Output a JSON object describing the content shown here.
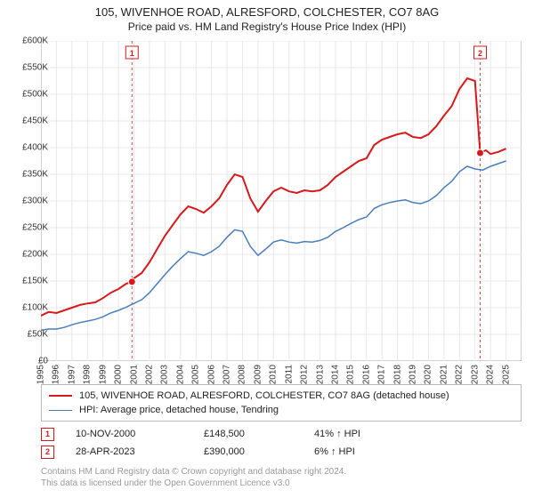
{
  "title": "105, WIVENHOE ROAD, ALRESFORD, COLCHESTER, CO7 8AG",
  "subtitle": "Price paid vs. HM Land Registry's House Price Index (HPI)",
  "chart": {
    "type": "line",
    "background_color": "#ffffff",
    "grid_color": "#e8e8e8",
    "axis_color": "#666666",
    "xlim": [
      1995,
      2026
    ],
    "ylim": [
      0,
      600000
    ],
    "ytick_step": 50000,
    "yticks": [
      "£0",
      "£50K",
      "£100K",
      "£150K",
      "£200K",
      "£250K",
      "£300K",
      "£350K",
      "£400K",
      "£450K",
      "£500K",
      "£550K",
      "£600K"
    ],
    "xticks": [
      "1995",
      "1996",
      "1997",
      "1998",
      "1999",
      "2000",
      "2001",
      "2002",
      "2003",
      "2004",
      "2005",
      "2006",
      "2007",
      "2008",
      "2009",
      "2010",
      "2011",
      "2012",
      "2013",
      "2014",
      "2015",
      "2016",
      "2017",
      "2018",
      "2019",
      "2020",
      "2021",
      "2022",
      "2023",
      "2024",
      "2025"
    ],
    "series": [
      {
        "name": "105, WIVENHOE ROAD, ALRESFORD, COLCHESTER, CO7 8AG (detached house)",
        "color": "#d7191c",
        "line_width": 2,
        "points": [
          [
            1995,
            85000
          ],
          [
            1995.5,
            92000
          ],
          [
            1996,
            90000
          ],
          [
            1996.5,
            95000
          ],
          [
            1997,
            100000
          ],
          [
            1997.5,
            105000
          ],
          [
            1998,
            108000
          ],
          [
            1998.5,
            110000
          ],
          [
            1999,
            118000
          ],
          [
            1999.5,
            128000
          ],
          [
            2000,
            135000
          ],
          [
            2000.5,
            145000
          ],
          [
            2000.87,
            148500
          ],
          [
            2001,
            155000
          ],
          [
            2001.5,
            165000
          ],
          [
            2002,
            185000
          ],
          [
            2002.5,
            210000
          ],
          [
            2003,
            235000
          ],
          [
            2003.5,
            255000
          ],
          [
            2004,
            275000
          ],
          [
            2004.5,
            290000
          ],
          [
            2005,
            285000
          ],
          [
            2005.5,
            278000
          ],
          [
            2006,
            290000
          ],
          [
            2006.5,
            305000
          ],
          [
            2007,
            330000
          ],
          [
            2007.5,
            350000
          ],
          [
            2008,
            345000
          ],
          [
            2008.5,
            305000
          ],
          [
            2009,
            280000
          ],
          [
            2009.5,
            300000
          ],
          [
            2010,
            318000
          ],
          [
            2010.5,
            325000
          ],
          [
            2011,
            318000
          ],
          [
            2011.5,
            315000
          ],
          [
            2012,
            320000
          ],
          [
            2012.5,
            318000
          ],
          [
            2013,
            320000
          ],
          [
            2013.5,
            330000
          ],
          [
            2014,
            345000
          ],
          [
            2014.5,
            355000
          ],
          [
            2015,
            365000
          ],
          [
            2015.5,
            375000
          ],
          [
            2016,
            380000
          ],
          [
            2016.5,
            405000
          ],
          [
            2017,
            415000
          ],
          [
            2017.5,
            420000
          ],
          [
            2018,
            425000
          ],
          [
            2018.5,
            428000
          ],
          [
            2019,
            420000
          ],
          [
            2019.5,
            418000
          ],
          [
            2020,
            425000
          ],
          [
            2020.5,
            440000
          ],
          [
            2021,
            460000
          ],
          [
            2021.5,
            478000
          ],
          [
            2022,
            510000
          ],
          [
            2022.5,
            530000
          ],
          [
            2023,
            525000
          ],
          [
            2023.33,
            390000
          ],
          [
            2023.7,
            395000
          ],
          [
            2024,
            388000
          ],
          [
            2024.5,
            392000
          ],
          [
            2025,
            398000
          ]
        ]
      },
      {
        "name": "HPI: Average price, detached house, Tendring",
        "color": "#4a7ebb",
        "line_width": 1.5,
        "points": [
          [
            1995,
            58000
          ],
          [
            1995.5,
            60000
          ],
          [
            1996,
            60000
          ],
          [
            1996.5,
            63000
          ],
          [
            1997,
            68000
          ],
          [
            1997.5,
            72000
          ],
          [
            1998,
            75000
          ],
          [
            1998.5,
            78000
          ],
          [
            1999,
            83000
          ],
          [
            1999.5,
            90000
          ],
          [
            2000,
            95000
          ],
          [
            2000.5,
            101000
          ],
          [
            2001,
            108000
          ],
          [
            2001.5,
            115000
          ],
          [
            2002,
            128000
          ],
          [
            2002.5,
            145000
          ],
          [
            2003,
            162000
          ],
          [
            2003.5,
            178000
          ],
          [
            2004,
            192000
          ],
          [
            2004.5,
            205000
          ],
          [
            2005,
            202000
          ],
          [
            2005.5,
            198000
          ],
          [
            2006,
            205000
          ],
          [
            2006.5,
            215000
          ],
          [
            2007,
            232000
          ],
          [
            2007.5,
            246000
          ],
          [
            2008,
            243000
          ],
          [
            2008.5,
            215000
          ],
          [
            2009,
            198000
          ],
          [
            2009.5,
            210000
          ],
          [
            2010,
            223000
          ],
          [
            2010.5,
            227000
          ],
          [
            2011,
            223000
          ],
          [
            2011.5,
            221000
          ],
          [
            2012,
            224000
          ],
          [
            2012.5,
            223000
          ],
          [
            2013,
            226000
          ],
          [
            2013.5,
            232000
          ],
          [
            2014,
            243000
          ],
          [
            2014.5,
            250000
          ],
          [
            2015,
            258000
          ],
          [
            2015.5,
            265000
          ],
          [
            2016,
            270000
          ],
          [
            2016.5,
            286000
          ],
          [
            2017,
            293000
          ],
          [
            2017.5,
            297000
          ],
          [
            2018,
            300000
          ],
          [
            2018.5,
            302000
          ],
          [
            2019,
            297000
          ],
          [
            2019.5,
            295000
          ],
          [
            2020,
            300000
          ],
          [
            2020.5,
            310000
          ],
          [
            2021,
            325000
          ],
          [
            2021.5,
            337000
          ],
          [
            2022,
            355000
          ],
          [
            2022.5,
            365000
          ],
          [
            2023,
            360000
          ],
          [
            2023.5,
            358000
          ],
          [
            2024,
            365000
          ],
          [
            2024.5,
            370000
          ],
          [
            2025,
            375000
          ]
        ]
      }
    ],
    "markers": [
      {
        "n": "1",
        "x": 2000.87,
        "y": 148500,
        "color": "#d7191c",
        "dash_color": "#d7191c"
      },
      {
        "n": "2",
        "x": 2023.33,
        "y": 390000,
        "color": "#d7191c",
        "dash_color": "#d7191c"
      }
    ]
  },
  "legend": {
    "items": [
      {
        "label": "105, WIVENHOE ROAD, ALRESFORD, COLCHESTER, CO7 8AG (detached house)",
        "color": "#d7191c",
        "width": 2
      },
      {
        "label": "HPI: Average price, detached house, Tendring",
        "color": "#4a7ebb",
        "width": 1.5
      }
    ]
  },
  "sales": [
    {
      "n": "1",
      "color": "#d7191c",
      "date": "10-NOV-2000",
      "price": "£148,500",
      "pct": "41% ↑ HPI"
    },
    {
      "n": "2",
      "color": "#d7191c",
      "date": "28-APR-2023",
      "price": "£390,000",
      "pct": "6% ↑ HPI"
    }
  ],
  "disclaimer_line1": "Contains HM Land Registry data © Crown copyright and database right 2024.",
  "disclaimer_line2": "This data is licensed under the Open Government Licence v3.0"
}
